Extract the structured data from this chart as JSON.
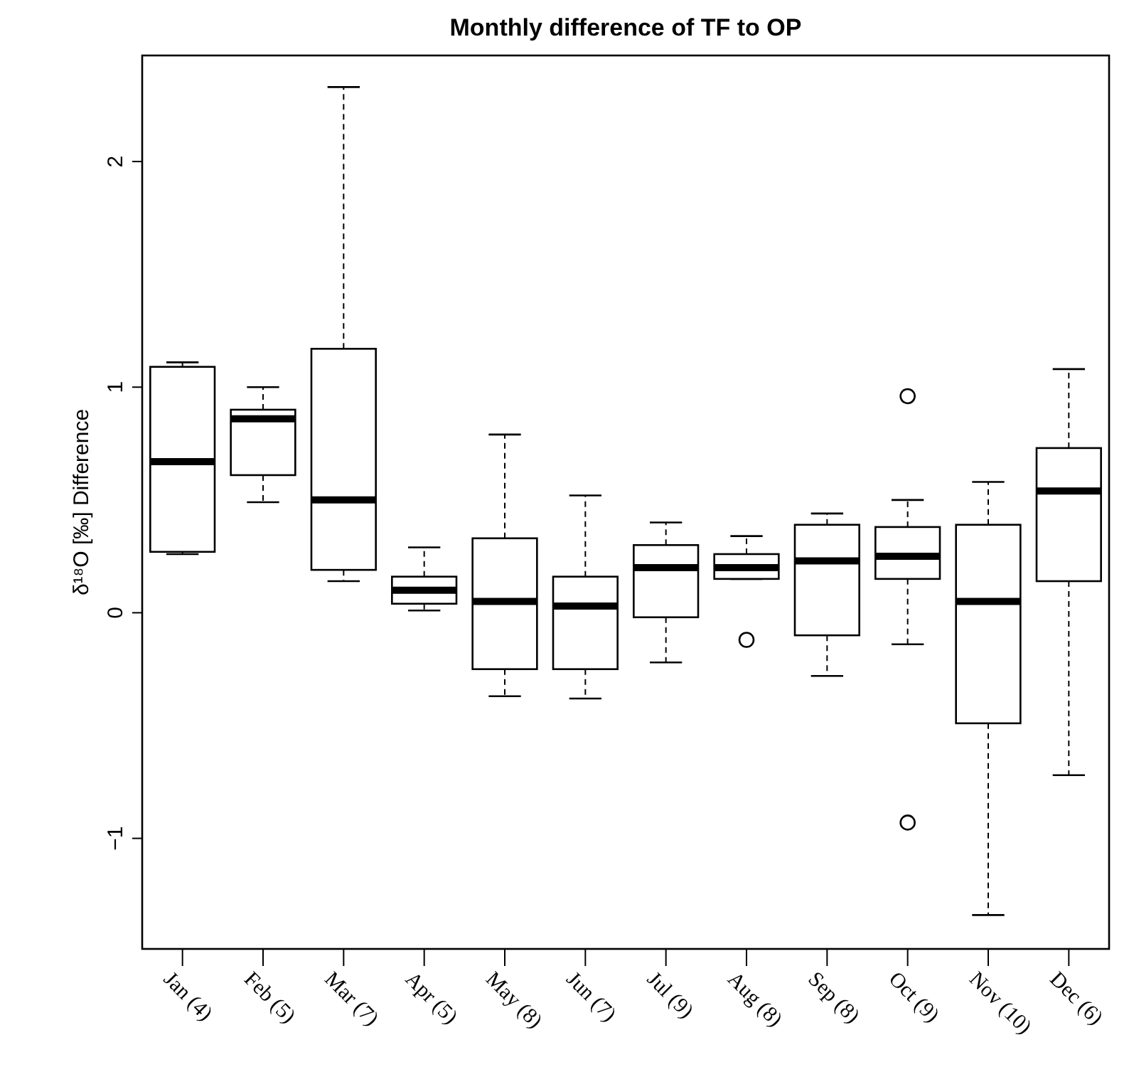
{
  "chart_data": {
    "type": "box",
    "title": "Monthly difference of TF to OP",
    "ylabel": "δ¹⁸O [‰] Difference",
    "categories": [
      "Jan (4)",
      "Feb (5)",
      "Mar (7)",
      "Apr (5)",
      "May (8)",
      "Jun (7)",
      "Jul (9)",
      "Aug (8)",
      "Sep (8)",
      "Oct (9)",
      "Nov (10)",
      "Dec (6)"
    ],
    "boxes": [
      {
        "low": 0.26,
        "q1": 0.27,
        "median": 0.67,
        "q3": 1.09,
        "high": 1.11
      },
      {
        "low": 0.49,
        "q1": 0.61,
        "median": 0.86,
        "q3": 0.9,
        "high": 1.0
      },
      {
        "low": 0.14,
        "q1": 0.19,
        "median": 0.5,
        "q3": 1.17,
        "high": 2.33
      },
      {
        "low": 0.01,
        "q1": 0.04,
        "median": 0.1,
        "q3": 0.16,
        "high": 0.29
      },
      {
        "low": -0.37,
        "q1": -0.25,
        "median": 0.05,
        "q3": 0.33,
        "high": 0.79
      },
      {
        "low": -0.38,
        "q1": -0.25,
        "median": 0.03,
        "q3": 0.16,
        "high": 0.52
      },
      {
        "low": -0.22,
        "q1": -0.02,
        "median": 0.2,
        "q3": 0.3,
        "high": 0.4
      },
      {
        "low": 0.15,
        "q1": 0.15,
        "median": 0.2,
        "q3": 0.26,
        "high": 0.34,
        "outliers": [
          -0.12
        ]
      },
      {
        "low": -0.28,
        "q1": -0.1,
        "median": 0.23,
        "q3": 0.39,
        "high": 0.44
      },
      {
        "low": -0.14,
        "q1": 0.15,
        "median": 0.25,
        "q3": 0.38,
        "high": 0.5,
        "outliers": [
          0.96,
          -0.93
        ]
      },
      {
        "low": -1.34,
        "q1": -0.49,
        "median": 0.05,
        "q3": 0.39,
        "high": 0.58
      },
      {
        "low": -0.72,
        "q1": 0.14,
        "median": 0.54,
        "q3": 0.73,
        "high": 1.08
      }
    ],
    "ylim": [
      -1.49,
      2.47
    ],
    "yticks": [
      -1,
      0,
      1,
      2
    ]
  }
}
